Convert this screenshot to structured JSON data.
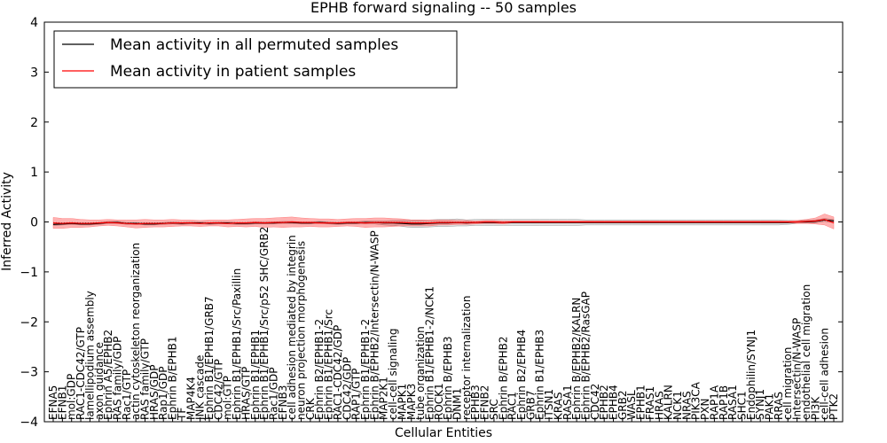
{
  "chart_data": {
    "type": "line",
    "title": "EPHB forward signaling -- 50 samples",
    "xlabel": "Cellular Entities",
    "ylabel": "Inferred Activity",
    "ylim": [
      -4,
      4
    ],
    "yticks": [
      -4,
      -3,
      -2,
      -1,
      0,
      1,
      2,
      3,
      4
    ],
    "ytick_labels": [
      "−4",
      "−3",
      "−2",
      "−1",
      "0",
      "1",
      "2",
      "3",
      "4"
    ],
    "legend": {
      "position": "top-left",
      "entries": [
        {
          "label": "Mean activity in all permuted samples",
          "color": "#000000"
        },
        {
          "label": "Mean activity in patient samples",
          "color": "#ff0000"
        }
      ]
    },
    "categories": [
      "EFNA5",
      "EFNB1",
      "mol:GDP",
      "RAC1-CDC42/GTP",
      "lamellipodium assembly",
      "axon guidance",
      "Ephrin A5/EPHB2",
      "RAS family/GDP",
      "Rac1/GTP",
      "actin cytoskeleton reorganization",
      "RAS family/GTP",
      "HRAS/GDP",
      "Rap1/GDP",
      "Ephrin B/EPHB1",
      "TF",
      "MAP4K4",
      "JNK cascade",
      "Ephrin B1/EPHB1/GRB7",
      "CDC42/GTP",
      "mol:GTP",
      "Ephrin B1/EPHB1/Src/Paxillin",
      "HRAS/GTP",
      "Ephrin B1/EPHB1",
      "Ephrin B1/EPHB1/Src/p52 SHC/GRB2",
      "Rac1/GDP",
      "EFNB3",
      "cell adhesion mediated by integrin",
      "neuron projection morphogenesis",
      "CRK",
      "Ephrin B2/EPHB1-2",
      "Ephrin B1/EPHB1/Src",
      "RAC1-CDC42/GDP",
      "CDC42/GDP",
      "RAP1/GTP",
      "Ephrin B1/EPHB1-2",
      "Ephrin B/EPHB2/Intersectin/N-WASP",
      "MAP2K1",
      "cell-cell signaling",
      "MAPK1",
      "MAPK3",
      "tube organization",
      "Ephrin B1/EPHB1-2/NCK1",
      "ROCK1",
      "Ephrin B/EPHB3",
      "DNM1",
      "receptor internalization",
      "EPHB3",
      "EFNB2",
      "SRC",
      "Ephrin B/EPHB2",
      "RAC1",
      "Ephrin B2/EPHB4",
      "GRB7",
      "Ephrin B1/EPHB3",
      "ITSN1",
      "KRAS",
      "RASA1",
      "Ephrin B/EPHB2/KALRN",
      "Ephrin B/EPHB2/RasGAP",
      "CDC42",
      "EPHB2",
      "EPHB4",
      "GRB2",
      "WASL",
      "EPHB1",
      "FRAS1",
      "HRAS",
      "KALRN",
      "NCK1",
      "NRAS",
      "PIK3CA",
      "PXN",
      "RAP1A",
      "RAP1B",
      "RASA1",
      "SHC1",
      "Endophilin/SYNJ1",
      "SYNJ1",
      "PAK1",
      "RRAS",
      "cell migration",
      "Intersectin/N-WASP",
      "endothelial cell migration",
      "PI3K",
      "cell-cell adhesion",
      "PTK2"
    ],
    "series": [
      {
        "name": "Mean activity in all permuted samples",
        "color": "#000000",
        "values": [
          -0.05,
          -0.04,
          -0.03,
          -0.04,
          -0.04,
          -0.03,
          -0.01,
          -0.01,
          -0.03,
          -0.03,
          -0.04,
          -0.04,
          -0.03,
          -0.02,
          -0.03,
          -0.02,
          -0.02,
          -0.03,
          -0.02,
          -0.02,
          -0.03,
          -0.03,
          -0.02,
          -0.02,
          -0.02,
          -0.01,
          -0.01,
          -0.02,
          -0.02,
          -0.01,
          -0.02,
          -0.03,
          -0.02,
          -0.02,
          -0.01,
          -0.01,
          -0.02,
          -0.02,
          -0.03,
          -0.04,
          -0.04,
          -0.03,
          -0.02,
          -0.02,
          -0.01,
          -0.02,
          -0.01,
          -0.01,
          -0.01,
          -0.01,
          -0.01,
          -0.01,
          -0.01,
          -0.01,
          -0.01,
          -0.01,
          -0.01,
          -0.01,
          -0.01,
          -0.01,
          -0.01,
          -0.01,
          -0.01,
          -0.01,
          -0.01,
          -0.01,
          -0.01,
          -0.01,
          -0.01,
          -0.01,
          -0.01,
          -0.01,
          -0.01,
          -0.01,
          -0.01,
          -0.01,
          -0.01,
          -0.01,
          -0.01,
          -0.01,
          -0.01,
          0.0,
          0.0,
          0.01,
          0.04,
          0.02
        ]
      },
      {
        "name": "Mean activity in patient samples",
        "color": "#ff0000",
        "values": [
          -0.02,
          -0.03,
          -0.02,
          -0.03,
          -0.03,
          -0.02,
          -0.01,
          -0.02,
          -0.03,
          -0.04,
          -0.03,
          -0.03,
          -0.03,
          -0.02,
          -0.02,
          -0.02,
          -0.03,
          -0.02,
          -0.02,
          -0.03,
          -0.02,
          -0.02,
          -0.01,
          -0.02,
          -0.01,
          -0.01,
          0.0,
          -0.01,
          -0.01,
          -0.02,
          -0.02,
          -0.02,
          -0.01,
          -0.01,
          -0.02,
          -0.01,
          -0.01,
          -0.01,
          -0.01,
          -0.02,
          -0.02,
          -0.02,
          -0.01,
          -0.01,
          -0.01,
          -0.01,
          -0.01,
          0.0,
          0.0,
          -0.01,
          0.0,
          0.0,
          0.0,
          0.0,
          0.0,
          0.0,
          0.0,
          0.0,
          0.0,
          0.0,
          0.0,
          0.0,
          0.0,
          0.0,
          0.0,
          0.0,
          0.0,
          0.0,
          0.0,
          0.0,
          0.0,
          0.0,
          0.0,
          0.0,
          0.0,
          0.0,
          0.0,
          0.0,
          0.0,
          0.0,
          0.0,
          0.0,
          0.01,
          0.02,
          0.05,
          -0.02
        ]
      }
    ],
    "band_halfwidth": {
      "patient": [
        0.11,
        0.1,
        0.09,
        0.08,
        0.07,
        0.06,
        0.06,
        0.06,
        0.07,
        0.08,
        0.08,
        0.07,
        0.07,
        0.07,
        0.06,
        0.06,
        0.06,
        0.06,
        0.06,
        0.07,
        0.07,
        0.08,
        0.08,
        0.09,
        0.09,
        0.1,
        0.1,
        0.09,
        0.08,
        0.08,
        0.08,
        0.07,
        0.07,
        0.08,
        0.09,
        0.09,
        0.09,
        0.08,
        0.07,
        0.06,
        0.06,
        0.06,
        0.05,
        0.05,
        0.04,
        0.04,
        0.03,
        0.03,
        0.03,
        0.03,
        0.02,
        0.02,
        0.02,
        0.02,
        0.02,
        0.02,
        0.02,
        0.02,
        0.02,
        0.02,
        0.02,
        0.02,
        0.02,
        0.02,
        0.02,
        0.02,
        0.02,
        0.02,
        0.02,
        0.02,
        0.02,
        0.02,
        0.02,
        0.02,
        0.02,
        0.02,
        0.02,
        0.02,
        0.02,
        0.02,
        0.02,
        0.03,
        0.04,
        0.06,
        0.11,
        0.12
      ],
      "permuted": [
        0.02,
        0.02,
        0.02,
        0.02,
        0.02,
        0.02,
        0.02,
        0.02,
        0.02,
        0.02,
        0.02,
        0.02,
        0.02,
        0.02,
        0.02,
        0.02,
        0.02,
        0.02,
        0.02,
        0.02,
        0.02,
        0.02,
        0.02,
        0.02,
        0.02,
        0.02,
        0.02,
        0.02,
        0.02,
        0.02,
        0.02,
        0.02,
        0.02,
        0.02,
        0.03,
        0.03,
        0.04,
        0.05,
        0.06,
        0.07,
        0.07,
        0.07,
        0.07,
        0.07,
        0.07,
        0.06,
        0.06,
        0.06,
        0.06,
        0.06,
        0.06,
        0.06,
        0.06,
        0.06,
        0.06,
        0.06,
        0.06,
        0.06,
        0.05,
        0.05,
        0.05,
        0.05,
        0.05,
        0.05,
        0.05,
        0.05,
        0.05,
        0.05,
        0.05,
        0.05,
        0.05,
        0.05,
        0.05,
        0.05,
        0.05,
        0.05,
        0.05,
        0.05,
        0.05,
        0.05,
        0.04,
        0.03,
        0.03,
        0.03,
        0.03,
        0.03
      ]
    },
    "grid": false
  }
}
